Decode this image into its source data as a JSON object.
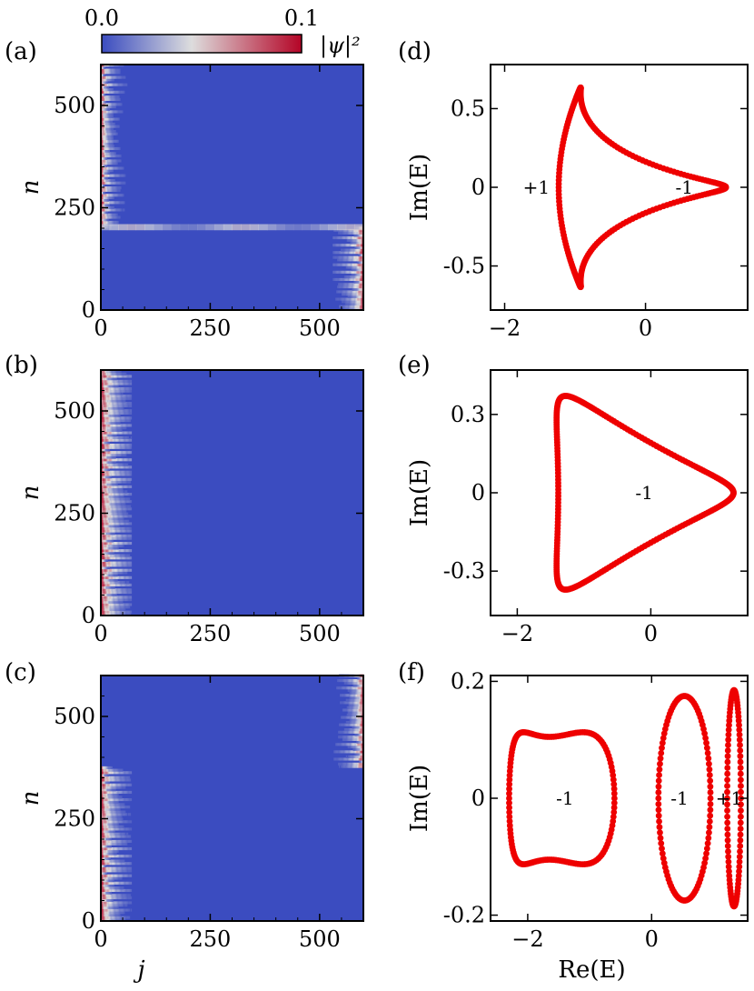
{
  "colorbar": {
    "min_label": "0.0",
    "max_label": "0.1",
    "range": [
      0.0,
      0.1
    ],
    "label": "|ψ|²",
    "colors": [
      "#3b4cc0",
      "#dddddd",
      "#b40426"
    ]
  },
  "chart_data": [
    {
      "id": "a",
      "panel_label": "(a)",
      "type": "heatmap",
      "xlabel": "",
      "ylabel": "n",
      "xlim": [
        0,
        600
      ],
      "ylim": [
        0,
        600
      ],
      "xticks": [
        0,
        250,
        500
      ],
      "yticks": [
        0,
        250,
        500
      ],
      "background_value": 0.0,
      "description_bands": [
        {
          "n_range": [
            200,
            600
          ],
          "j_edge": "left",
          "decay_j": 12,
          "peak": 0.1
        },
        {
          "n_range": [
            0,
            200
          ],
          "j_edge": "right",
          "decay_j": 18,
          "peak": 0.1
        },
        {
          "n_range": [
            195,
            210
          ],
          "j_edge": "line",
          "peak": 0.02
        }
      ]
    },
    {
      "id": "b",
      "panel_label": "(b)",
      "type": "heatmap",
      "xlabel": "",
      "ylabel": "n",
      "xlim": [
        0,
        600
      ],
      "ylim": [
        0,
        600
      ],
      "xticks": [
        0,
        250,
        500
      ],
      "yticks": [
        0,
        250,
        500
      ],
      "background_value": 0.0,
      "description_bands": [
        {
          "n_range": [
            0,
            600
          ],
          "j_edge": "left",
          "decay_j": 25,
          "peak": 0.1
        }
      ]
    },
    {
      "id": "c",
      "panel_label": "(c)",
      "type": "heatmap",
      "xlabel": "j",
      "ylabel": "n",
      "xlim": [
        0,
        600
      ],
      "ylim": [
        0,
        600
      ],
      "xticks": [
        0,
        250,
        500
      ],
      "yticks": [
        0,
        250,
        500
      ],
      "background_value": 0.0,
      "description_bands": [
        {
          "n_range": [
            375,
            600
          ],
          "j_edge": "right",
          "decay_j": 15,
          "peak": 0.1
        },
        {
          "n_range": [
            0,
            375
          ],
          "j_edge": "left",
          "decay_j": 20,
          "peak": 0.1
        }
      ]
    },
    {
      "id": "d",
      "panel_label": "(d)",
      "type": "scatter",
      "xlabel": "",
      "ylabel": "Im(E)",
      "xlim": [
        -2.2,
        1.45
      ],
      "ylim": [
        -0.78,
        0.78
      ],
      "xticks": [
        -2,
        0
      ],
      "xtick_labels": [
        "−2",
        "0"
      ],
      "yticks": [
        -0.5,
        0,
        0.5
      ],
      "ytick_labels": [
        "-0.5",
        "0",
        "0.5"
      ],
      "color": "#ee0000",
      "curve": {
        "kind": "trefoil",
        "t": [
          1,
          0.85,
          0.45,
          0.0,
          0.0,
          0.0
        ]
      },
      "annotations": [
        {
          "text": "+1",
          "x": -1.55,
          "y": 0.0
        },
        {
          "text": "-1",
          "x": 0.55,
          "y": 0.0
        }
      ]
    },
    {
      "id": "e",
      "panel_label": "(e)",
      "type": "scatter",
      "xlabel": "",
      "ylabel": "Im(E)",
      "xlim": [
        -2.4,
        1.45
      ],
      "ylim": [
        -0.47,
        0.47
      ],
      "xticks": [
        -2,
        0
      ],
      "xtick_labels": [
        "−2",
        "0"
      ],
      "yticks": [
        -0.3,
        0,
        0.3
      ],
      "ytick_labels": [
        "-0.3",
        "0",
        "0.3"
      ],
      "color": "#ee0000",
      "curve": {
        "kind": "triangle"
      },
      "annotations": [
        {
          "text": "-1",
          "x": -0.1,
          "y": 0.0
        }
      ]
    },
    {
      "id": "f",
      "panel_label": "(f)",
      "type": "scatter",
      "xlabel": "Re(E)",
      "ylabel": "Im(E)",
      "xlim": [
        -2.6,
        1.55
      ],
      "ylim": [
        -0.21,
        0.21
      ],
      "xticks": [
        -2,
        0
      ],
      "xtick_labels": [
        "−2",
        "0"
      ],
      "yticks": [
        -0.2,
        0,
        0.2
      ],
      "ytick_labels": [
        "-0.2",
        "0",
        "0.2"
      ],
      "color": "#ee0000",
      "curve": {
        "kind": "three-loops"
      },
      "annotations": [
        {
          "text": "-1",
          "x": -1.4,
          "y": 0.0
        },
        {
          "text": "-1",
          "x": 0.45,
          "y": 0.0
        },
        {
          "text": "+1",
          "x": 1.25,
          "y": 0.0
        }
      ]
    }
  ]
}
